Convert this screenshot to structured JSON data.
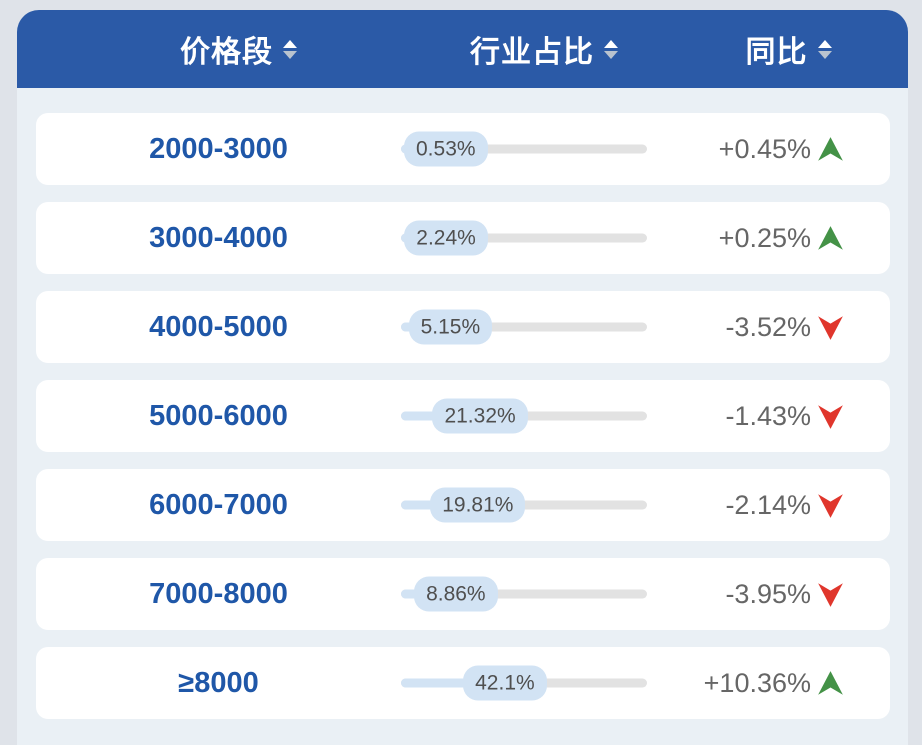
{
  "colors": {
    "header_bg": "#2b5aa7",
    "panel_bg": "#eaf0f5",
    "page_bg": "#dfe3e9",
    "card_bg": "#ffffff",
    "price_text": "#1f57a8",
    "bar_track": "#e2e2e2",
    "bar_fill": "#d2e3f4",
    "pill_text": "#4f4f4f",
    "yoy_text": "#666666",
    "trend_up_green": "#449247",
    "trend_down_red": "#e0362c",
    "sort_arrow_active": "#ffffff",
    "sort_arrow_muted": "#b9c3cf"
  },
  "table": {
    "columns": [
      {
        "label": "价格段"
      },
      {
        "label": "行业占比"
      },
      {
        "label": "同比"
      }
    ],
    "rows": [
      {
        "price": "2000-3000",
        "share_label": "0.53%",
        "share_pct": 0.53,
        "yoy_label": "+0.45%",
        "trend": "up"
      },
      {
        "price": "3000-4000",
        "share_label": "2.24%",
        "share_pct": 2.24,
        "yoy_label": "+0.25%",
        "trend": "up"
      },
      {
        "price": "4000-5000",
        "share_label": "5.15%",
        "share_pct": 5.15,
        "yoy_label": "-3.52%",
        "trend": "down"
      },
      {
        "price": "5000-6000",
        "share_label": "21.32%",
        "share_pct": 21.32,
        "yoy_label": "-1.43%",
        "trend": "down"
      },
      {
        "price": "6000-7000",
        "share_label": "19.81%",
        "share_pct": 19.81,
        "yoy_label": "-2.14%",
        "trend": "down"
      },
      {
        "price": "7000-8000",
        "share_label": "8.86%",
        "share_pct": 8.86,
        "yoy_label": "-3.95%",
        "trend": "down"
      },
      {
        "price": "≥8000",
        "share_label": "42.1%",
        "share_pct": 42.1,
        "yoy_label": "+10.36%",
        "trend": "up"
      }
    ]
  },
  "chart_data": {
    "type": "table",
    "columns": [
      "价格段",
      "行业占比",
      "同比"
    ],
    "categories": [
      "2000-3000",
      "3000-4000",
      "4000-5000",
      "5000-6000",
      "6000-7000",
      "7000-8000",
      "≥8000"
    ],
    "series": [
      {
        "name": "行业占比",
        "unit": "%",
        "values": [
          0.53,
          2.24,
          5.15,
          21.32,
          19.81,
          8.86,
          42.1
        ]
      },
      {
        "name": "同比",
        "unit": "%",
        "values": [
          0.45,
          0.25,
          -3.52,
          -1.43,
          -2.14,
          -3.95,
          10.36
        ]
      }
    ],
    "layout": "sortable table, share column rendered as horizontal bar with value badge, yoy column with up/down trend arrows"
  }
}
